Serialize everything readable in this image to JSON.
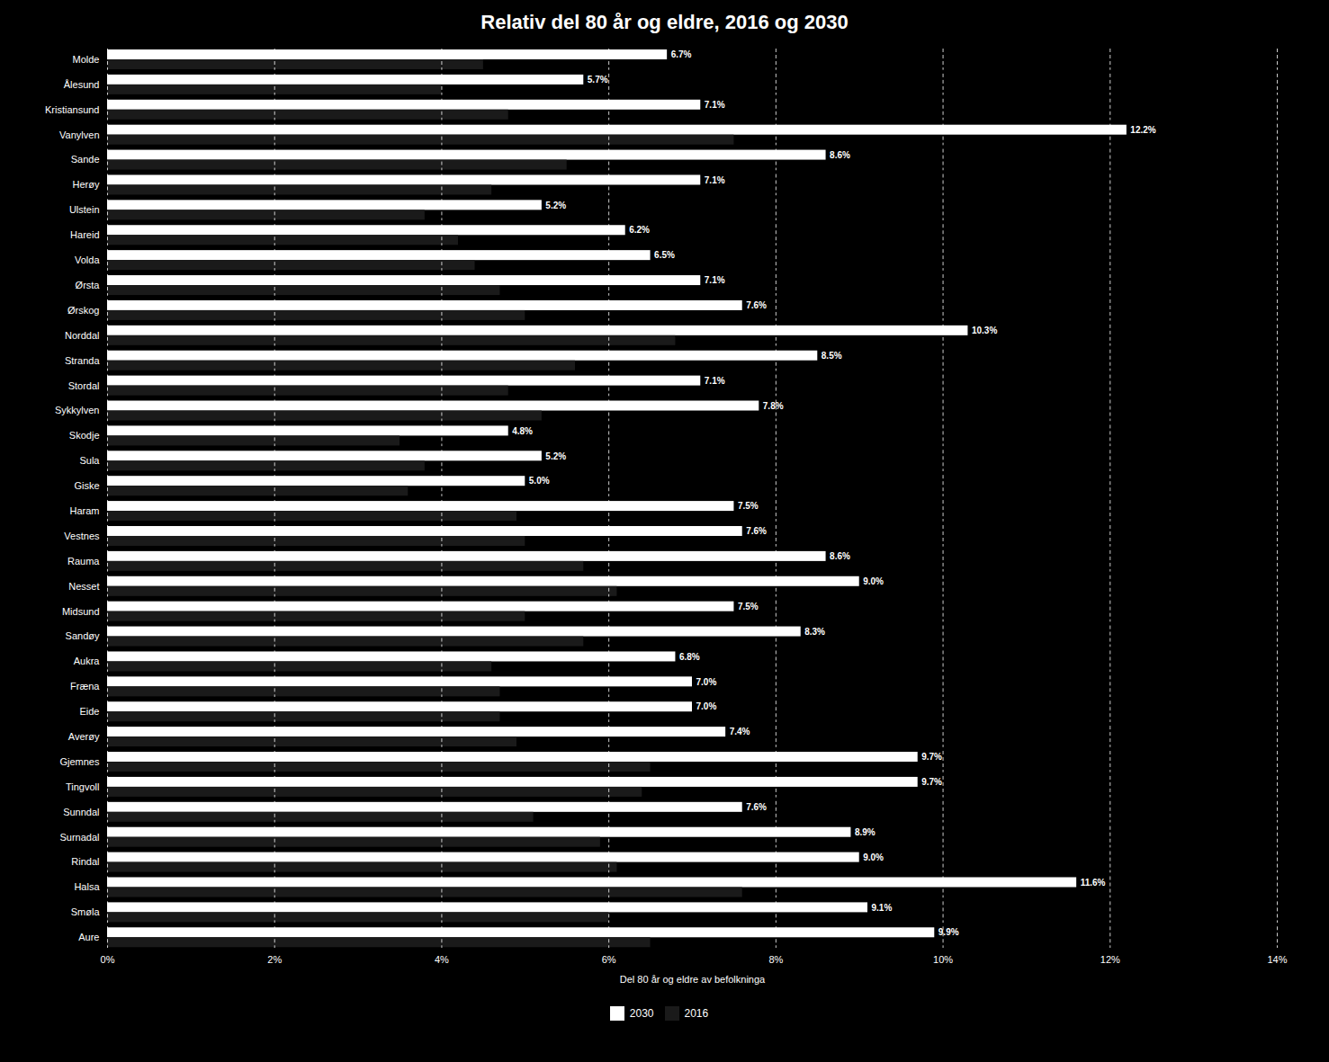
{
  "chart_data": {
    "type": "bar",
    "orientation": "horizontal",
    "title": "Relativ del 80 år og eldre, 2016 og 2030",
    "xlabel": "Del 80 år og eldre av befolkninga",
    "categories": [
      "Molde",
      "Ålesund",
      "Kristiansund",
      "Vanylven",
      "Sande",
      "Herøy",
      "Ulstein",
      "Hareid",
      "Volda",
      "Ørsta",
      "Ørskog",
      "Norddal",
      "Stranda",
      "Stordal",
      "Sykkylven",
      "Skodje",
      "Sula",
      "Giske",
      "Haram",
      "Vestnes",
      "Rauma",
      "Nesset",
      "Midsund",
      "Sandøy",
      "Aukra",
      "Fræna",
      "Eide",
      "Averøy",
      "Gjemnes",
      "Tingvoll",
      "Sunndal",
      "Surnadal",
      "Rindal",
      "Halsa",
      "Smøla",
      "Aure"
    ],
    "series": [
      {
        "name": "2030",
        "color": "#ffffff",
        "values": [
          6.7,
          5.7,
          7.1,
          12.2,
          8.6,
          7.1,
          5.2,
          6.2,
          6.5,
          7.1,
          7.6,
          10.3,
          8.5,
          7.1,
          7.8,
          4.8,
          5.2,
          5.0,
          7.5,
          7.6,
          8.6,
          9.0,
          7.5,
          8.3,
          6.8,
          7.0,
          7.0,
          7.4,
          9.7,
          9.7,
          7.6,
          8.9,
          9.0,
          11.6,
          9.1,
          9.9
        ],
        "value_labels": [
          "6.7%",
          "5.7%",
          "7.1%",
          "12.2%",
          "8.6%",
          "7.1%",
          "5.2%",
          "6.2%",
          "6.5%",
          "7.1%",
          "7.6%",
          "10.3%",
          "8.5%",
          "7.1%",
          "7.8%",
          "4.8%",
          "5.2%",
          "5.0%",
          "7.5%",
          "7.6%",
          "8.6%",
          "9.0%",
          "7.5%",
          "8.3%",
          "6.8%",
          "7.0%",
          "7.0%",
          "7.4%",
          "9.7%",
          "9.7%",
          "7.6%",
          "8.9%",
          "9.0%",
          "11.6%",
          "9.1%",
          "9.9%"
        ]
      },
      {
        "name": "2016",
        "color": "#1a1a1a",
        "values": [
          4.5,
          4.0,
          4.8,
          7.5,
          5.5,
          4.6,
          3.8,
          4.2,
          4.4,
          4.7,
          5.0,
          6.8,
          5.6,
          4.8,
          5.2,
          3.5,
          3.8,
          3.6,
          4.9,
          5.0,
          5.7,
          6.1,
          5.0,
          5.7,
          4.6,
          4.7,
          4.7,
          4.9,
          6.5,
          6.4,
          5.1,
          5.9,
          6.1,
          7.6,
          6.0,
          6.5
        ]
      }
    ],
    "xlim": [
      0,
      14
    ],
    "xticks": [
      {
        "value": 0,
        "label": "0%"
      },
      {
        "value": 2,
        "label": "2%"
      },
      {
        "value": 4,
        "label": "4%"
      },
      {
        "value": 6,
        "label": "6%"
      },
      {
        "value": 8,
        "label": "8%"
      },
      {
        "value": 10,
        "label": "10%"
      },
      {
        "value": 12,
        "label": "12%"
      },
      {
        "value": 14,
        "label": "14%"
      }
    ],
    "grid": true,
    "data_labels": true,
    "legend": "bottom"
  }
}
